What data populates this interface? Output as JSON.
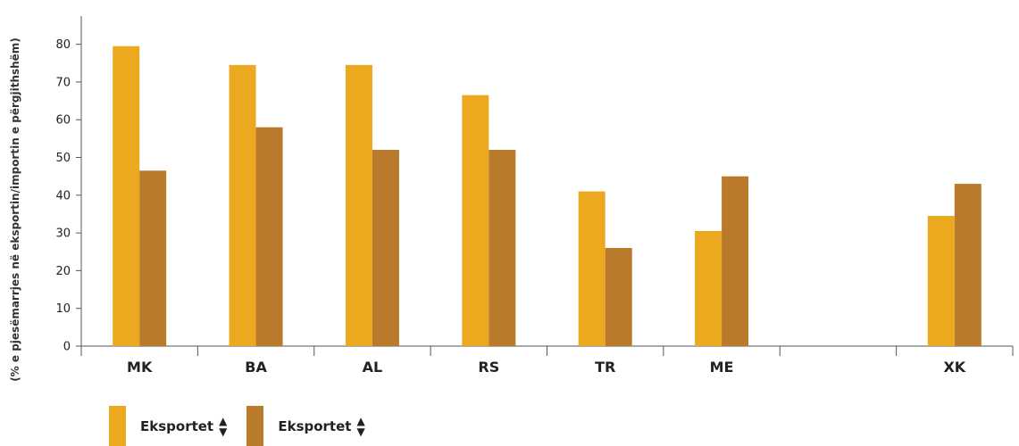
{
  "chart_data": {
    "type": "bar",
    "ylabel": "(% e pjesëmarrjes në eksportin/importin e përgjithshëm)",
    "ylim": [
      0,
      85
    ],
    "yticks": [
      0,
      10,
      20,
      30,
      40,
      50,
      60,
      70,
      80
    ],
    "categories": [
      "MK",
      "BA",
      "AL",
      "RS",
      "TR",
      "ME",
      "",
      "XK"
    ],
    "series": [
      {
        "name": "Eksportet",
        "color": "#ECA920",
        "values": [
          79.5,
          74.5,
          74.5,
          66.5,
          41,
          30.5,
          null,
          34.5
        ]
      },
      {
        "name": "Eksportet",
        "color": "#BA7A2C",
        "values": [
          46.5,
          58,
          52,
          52,
          26,
          45,
          null,
          43
        ]
      }
    ],
    "grid": false,
    "legend_position": "bottom-left"
  },
  "legend": {
    "items": [
      {
        "label": "Eksportet",
        "icon": "sort-icon"
      },
      {
        "label": "Eksportet",
        "icon": "sort-icon"
      }
    ]
  }
}
